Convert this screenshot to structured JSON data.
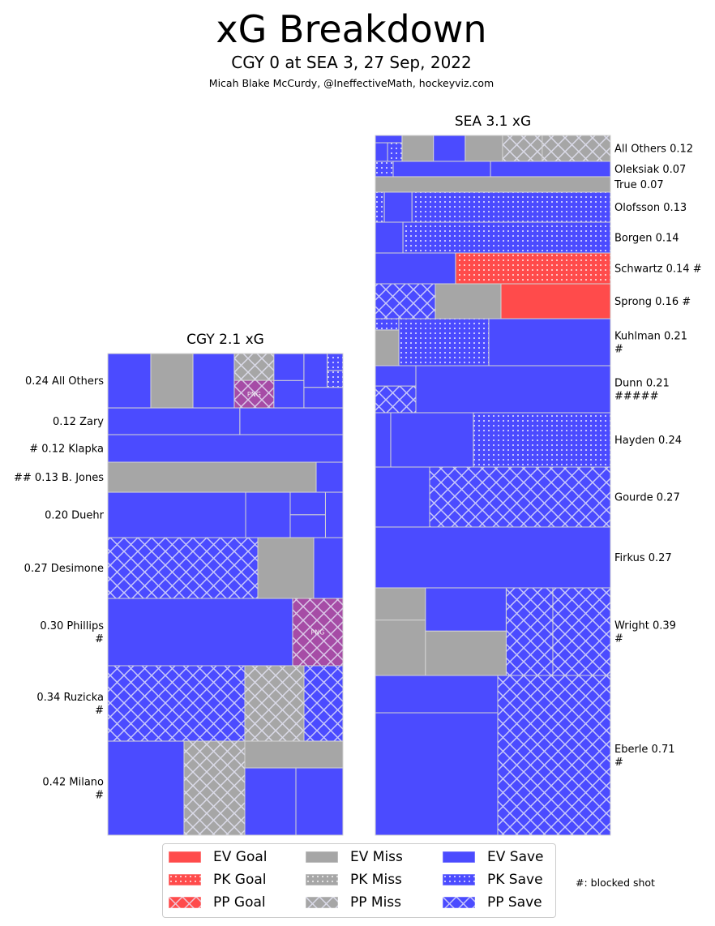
{
  "colors": {
    "goal": "#ff4b4b",
    "miss": "#a6a6a6",
    "save": "#4b4bff",
    "png": "#a64ca6",
    "edge": "#d3d3d3"
  },
  "chart_data": {
    "type": "bar",
    "title": "xG Breakdown",
    "subtitle": "CGY 0 at SEA 3, 27 Sep, 2022",
    "credit": "Micah Blake McCurdy, @IneffectiveMath, hockeyviz.com",
    "xlabel": "",
    "ylabel": "",
    "grid": false,
    "teams": [
      {
        "name": "CGY",
        "title": "CGY 2.1 xG",
        "xg_total": 2.1,
        "goals": 0,
        "players": [
          {
            "name": "All Others",
            "xg_label": "0.24",
            "blocked_shots": 0,
            "label_lines": [
              "0.24 All Others"
            ],
            "shots": [
              {
                "outcome": "save",
                "strength": "EV",
                "xg": 0.0442
              },
              {
                "outcome": "miss",
                "strength": "EV",
                "xg": 0.0434
              },
              {
                "outcome": "save",
                "strength": "EV",
                "xg": 0.0425
              },
              {
                "outcome": "png",
                "strength": "PP",
                "xg": 0.0207,
                "block_label": "PNG"
              },
              {
                "outcome": "miss",
                "strength": "PP",
                "xg": 0.0201
              },
              {
                "outcome": "save",
                "strength": "EV",
                "xg": 0.0156
              },
              {
                "outcome": "save",
                "strength": "EV",
                "xg": 0.0153
              },
              {
                "outcome": "save",
                "strength": "EV",
                "xg": 0.0152
              },
              {
                "outcome": "save",
                "strength": "EV",
                "xg": 0.0149
              },
              {
                "outcome": "save",
                "strength": "PK",
                "xg": 0.005
              },
              {
                "outcome": "save",
                "strength": "PK",
                "xg": 0.005
              }
            ]
          },
          {
            "name": "Zary",
            "xg_label": "0.12",
            "blocked_shots": 0,
            "label_lines": [
              "0.12 Zary"
            ],
            "shots": [
              {
                "outcome": "save",
                "strength": "EV",
                "xg": 0.0669
              },
              {
                "outcome": "save",
                "strength": "EV",
                "xg": 0.0522
              }
            ]
          },
          {
            "name": "Klapka",
            "xg_label": "0.12",
            "blocked_shots": 1,
            "label_lines": [
              "# 0.12 Klapka"
            ],
            "shots": [
              {
                "outcome": "save",
                "strength": "EV",
                "xg": 0.1227
              }
            ]
          },
          {
            "name": "B. Jones",
            "xg_label": "0.13",
            "blocked_shots": 2,
            "label_lines": [
              "## 0.13 B. Jones"
            ],
            "shots": [
              {
                "outcome": "miss",
                "strength": "EV",
                "xg": 0.1184
              },
              {
                "outcome": "save",
                "strength": "EV",
                "xg": 0.0152
              }
            ]
          },
          {
            "name": "Duehr",
            "xg_label": "0.20",
            "blocked_shots": 0,
            "label_lines": [
              "0.20 Duehr"
            ],
            "shots": [
              {
                "outcome": "save",
                "strength": "EV",
                "xg": 0.1185
              },
              {
                "outcome": "save",
                "strength": "EV",
                "xg": 0.0383
              },
              {
                "outcome": "save",
                "strength": "EV",
                "xg": 0.0153
              },
              {
                "outcome": "save",
                "strength": "EV",
                "xg": 0.015
              },
              {
                "outcome": "save",
                "strength": "EV",
                "xg": 0.015
              }
            ]
          },
          {
            "name": "Desimone",
            "xg_label": "0.27",
            "blocked_shots": 0,
            "label_lines": [
              "0.27 Desimone"
            ],
            "shots": [
              {
                "outcome": "save",
                "strength": "PP",
                "xg": 0.1727
              },
              {
                "outcome": "miss",
                "strength": "EV",
                "xg": 0.0644
              },
              {
                "outcome": "save",
                "strength": "EV",
                "xg": 0.0336
              }
            ]
          },
          {
            "name": "Phillips",
            "xg_label": "0.30",
            "blocked_shots": 1,
            "label_lines": [
              "0.30 Phillips",
              "#"
            ],
            "shots": [
              {
                "outcome": "save",
                "strength": "EV",
                "xg": 0.2356
              },
              {
                "outcome": "png",
                "strength": "PP",
                "xg": 0.0641,
                "block_label": "PNG"
              }
            ]
          },
          {
            "name": "Ruzicka",
            "xg_label": "0.34",
            "blocked_shots": 1,
            "label_lines": [
              "0.34 Ruzicka",
              "#"
            ],
            "shots": [
              {
                "outcome": "save",
                "strength": "PP",
                "xg": 0.1957
              },
              {
                "outcome": "miss",
                "strength": "PP",
                "xg": 0.0845
              },
              {
                "outcome": "save",
                "strength": "PP",
                "xg": 0.0556
              }
            ]
          },
          {
            "name": "Milano",
            "xg_label": "0.42",
            "blocked_shots": 1,
            "label_lines": [
              "0.42 Milano",
              "#"
            ],
            "shots": [
              {
                "outcome": "save",
                "strength": "EV",
                "xg": 0.1357
              },
              {
                "outcome": "miss",
                "strength": "PP",
                "xg": 0.1083
              },
              {
                "outcome": "save",
                "strength": "EV",
                "xg": 0.0651
              },
              {
                "outcome": "save",
                "strength": "EV",
                "xg": 0.0599
              },
              {
                "outcome": "miss",
                "strength": "EV",
                "xg": 0.0497
              }
            ]
          }
        ]
      },
      {
        "name": "SEA",
        "title": "SEA 3.1 xG",
        "xg_total": 3.1,
        "goals": 3,
        "players": [
          {
            "name": "All Others",
            "xg_label": "0.12",
            "blocked_shots": 0,
            "label_lines": [
              "All Others 0.12"
            ],
            "shots": [
              {
                "outcome": "miss",
                "strength": "PP",
                "xg": 0.0335
              },
              {
                "outcome": "miss",
                "strength": "PP",
                "xg": 0.0195
              },
              {
                "outcome": "miss",
                "strength": "EV",
                "xg": 0.0183
              },
              {
                "outcome": "save",
                "strength": "EV",
                "xg": 0.0156
              },
              {
                "outcome": "miss",
                "strength": "EV",
                "xg": 0.0154
              },
              {
                "outcome": "save",
                "strength": "PK",
                "xg": 0.0051
              },
              {
                "outcome": "save",
                "strength": "EV",
                "xg": 0.0043
              },
              {
                "outcome": "save",
                "strength": "EV",
                "xg": 0.0037
              }
            ]
          },
          {
            "name": "Oleksiak",
            "xg_label": "0.07",
            "blocked_shots": 0,
            "label_lines": [
              "Oleksiak 0.07"
            ],
            "shots": [
              {
                "outcome": "save",
                "strength": "EV",
                "xg": 0.035
              },
              {
                "outcome": "save",
                "strength": "EV",
                "xg": 0.0284
              },
              {
                "outcome": "save",
                "strength": "PK",
                "xg": 0.0052
              }
            ]
          },
          {
            "name": "True",
            "xg_label": "0.07",
            "blocked_shots": 0,
            "label_lines": [
              "True 0.07"
            ],
            "shots": [
              {
                "outcome": "miss",
                "strength": "EV",
                "xg": 0.0686
              }
            ]
          },
          {
            "name": "Olofsson",
            "xg_label": "0.13",
            "blocked_shots": 0,
            "label_lines": [
              "Olofsson 0.13"
            ],
            "shots": [
              {
                "outcome": "save",
                "strength": "PK",
                "xg": 0.1129
              },
              {
                "outcome": "save",
                "strength": "EV",
                "xg": 0.0157
              },
              {
                "outcome": "save",
                "strength": "PK",
                "xg": 0.0051
              }
            ]
          },
          {
            "name": "Borgen",
            "xg_label": "0.14",
            "blocked_shots": 0,
            "label_lines": [
              "Borgen 0.14"
            ],
            "shots": [
              {
                "outcome": "save",
                "strength": "PK",
                "xg": 0.1211
              },
              {
                "outcome": "save",
                "strength": "EV",
                "xg": 0.0161
              }
            ]
          },
          {
            "name": "Schwartz",
            "xg_label": "0.14",
            "blocked_shots": 1,
            "label_lines": [
              "Schwartz 0.14 #"
            ],
            "shots": [
              {
                "outcome": "goal",
                "strength": "PK",
                "xg": 0.0904
              },
              {
                "outcome": "save",
                "strength": "EV",
                "xg": 0.0468
              }
            ]
          },
          {
            "name": "Sprong",
            "xg_label": "0.16",
            "blocked_shots": 1,
            "label_lines": [
              "Sprong 0.16 #"
            ],
            "shots": [
              {
                "outcome": "goal",
                "strength": "EV",
                "xg": 0.0723
              },
              {
                "outcome": "miss",
                "strength": "EV",
                "xg": 0.0434
              },
              {
                "outcome": "save",
                "strength": "PP",
                "xg": 0.0396
              }
            ]
          },
          {
            "name": "Kuhlman",
            "xg_label": "0.21",
            "blocked_shots": 1,
            "label_lines": [
              "Kuhlman 0.21",
              "#"
            ],
            "shots": [
              {
                "outcome": "save",
                "strength": "EV",
                "xg": 0.1083
              },
              {
                "outcome": "save",
                "strength": "PK",
                "xg": 0.0801
              },
              {
                "outcome": "miss",
                "strength": "EV",
                "xg": 0.0159
              },
              {
                "outcome": "save",
                "strength": "PK",
                "xg": 0.005
              }
            ]
          },
          {
            "name": "Dunn",
            "xg_label": "0.21",
            "blocked_shots": 5,
            "label_lines": [
              "Dunn 0.21",
              "#####"
            ],
            "shots": [
              {
                "outcome": "save",
                "strength": "EV",
                "xg": 0.1733
              },
              {
                "outcome": "save",
                "strength": "PP",
                "xg": 0.0205
              },
              {
                "outcome": "save",
                "strength": "EV",
                "xg": 0.0156
              }
            ]
          },
          {
            "name": "Hayden",
            "xg_label": "0.24",
            "blocked_shots": 0,
            "label_lines": [
              "Hayden 0.24"
            ],
            "shots": [
              {
                "outcome": "save",
                "strength": "PK",
                "xg": 0.141
              },
              {
                "outcome": "save",
                "strength": "EV",
                "xg": 0.0851
              },
              {
                "outcome": "save",
                "strength": "EV",
                "xg": 0.0158
              }
            ]
          },
          {
            "name": "Gourde",
            "xg_label": "0.27",
            "blocked_shots": 0,
            "label_lines": [
              "Gourde 0.27"
            ],
            "shots": [
              {
                "outcome": "save",
                "strength": "PP",
                "xg": 0.2054
              },
              {
                "outcome": "save",
                "strength": "EV",
                "xg": 0.0617
              }
            ]
          },
          {
            "name": "Firkus",
            "xg_label": "0.27",
            "blocked_shots": 0,
            "label_lines": [
              "Firkus 0.27"
            ],
            "shots": [
              {
                "outcome": "save",
                "strength": "EV",
                "xg": 0.2708
              }
            ]
          },
          {
            "name": "Wright",
            "xg_label": "0.39",
            "blocked_shots": 1,
            "label_lines": [
              "Wright 0.39",
              "#"
            ],
            "shots": [
              {
                "outcome": "save",
                "strength": "PP",
                "xg": 0.0955
              },
              {
                "outcome": "save",
                "strength": "PP",
                "xg": 0.0775
              },
              {
                "outcome": "miss",
                "strength": "EV",
                "xg": 0.068
              },
              {
                "outcome": "save",
                "strength": "EV",
                "xg": 0.066
              },
              {
                "outcome": "miss",
                "strength": "EV",
                "xg": 0.0525
              },
              {
                "outcome": "miss",
                "strength": "EV",
                "xg": 0.0305
              }
            ]
          },
          {
            "name": "Eberle",
            "xg_label": "0.71",
            "blocked_shots": 1,
            "label_lines": [
              "Eberle 0.71",
              "#"
            ],
            "shots": [
              {
                "outcome": "save",
                "strength": "PP",
                "xg": 0.3409
              },
              {
                "outcome": "save",
                "strength": "EV",
                "xg": 0.2838
              },
              {
                "outcome": "save",
                "strength": "EV",
                "xg": 0.0865
              }
            ]
          }
        ]
      }
    ],
    "legend": {
      "placement": "bottom-center",
      "items": [
        {
          "label": "EV Goal",
          "outcome": "goal",
          "strength": "EV"
        },
        {
          "label": "PK Goal",
          "outcome": "goal",
          "strength": "PK"
        },
        {
          "label": "PP Goal",
          "outcome": "goal",
          "strength": "PP"
        },
        {
          "label": "EV Miss",
          "outcome": "miss",
          "strength": "EV"
        },
        {
          "label": "PK Miss",
          "outcome": "miss",
          "strength": "PK"
        },
        {
          "label": "PP Miss",
          "outcome": "miss",
          "strength": "PP"
        },
        {
          "label": "EV Save",
          "outcome": "save",
          "strength": "EV"
        },
        {
          "label": "PK Save",
          "outcome": "save",
          "strength": "PK"
        },
        {
          "label": "PP Save",
          "outcome": "save",
          "strength": "PP"
        }
      ],
      "note": "#: blocked shot"
    }
  }
}
